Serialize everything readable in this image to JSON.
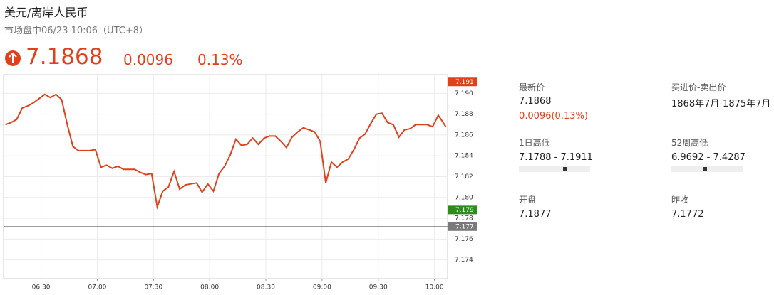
{
  "header": {
    "title": "美元/离岸人民币",
    "status": "市场盘中06/23 10:06（UTC+8）",
    "price": "7.1868",
    "change": "0.0096",
    "change_pct": "0.13%"
  },
  "chart_data": {
    "type": "line",
    "x": [
      "06:11",
      "06:14",
      "06:17",
      "06:20",
      "06:23",
      "06:26",
      "06:29",
      "06:32",
      "06:35",
      "06:38",
      "06:41",
      "06:44",
      "06:47",
      "06:50",
      "06:53",
      "06:56",
      "06:59",
      "07:02",
      "07:05",
      "07:08",
      "07:11",
      "07:14",
      "07:17",
      "07:20",
      "07:23",
      "07:26",
      "07:29",
      "07:32",
      "07:35",
      "07:38",
      "07:41",
      "07:44",
      "07:47",
      "07:50",
      "07:53",
      "07:56",
      "07:59",
      "08:02",
      "08:05",
      "08:08",
      "08:11",
      "08:14",
      "08:17",
      "08:20",
      "08:23",
      "08:26",
      "08:29",
      "08:32",
      "08:35",
      "08:38",
      "08:41",
      "08:44",
      "08:47",
      "08:50",
      "08:53",
      "08:56",
      "08:59",
      "09:02",
      "09:05",
      "09:08",
      "09:11",
      "09:14",
      "09:17",
      "09:20",
      "09:23",
      "09:26",
      "09:29",
      "09:32",
      "09:35",
      "09:38",
      "09:41",
      "09:44",
      "09:47",
      "09:50",
      "09:53",
      "09:56",
      "09:59",
      "10:02",
      "10:05",
      "10:06"
    ],
    "series": [
      {
        "color": "#e0401c",
        "values": [
          7.187,
          7.1872,
          7.1875,
          7.1886,
          7.1888,
          7.1891,
          7.1895,
          7.1899,
          7.1896,
          7.1899,
          7.1894,
          7.187,
          7.1849,
          7.1845,
          7.1845,
          7.1845,
          7.1846,
          7.1829,
          7.1831,
          7.1828,
          7.183,
          7.1827,
          7.1827,
          7.1827,
          7.1824,
          7.1822,
          7.1823,
          7.1791,
          7.1806,
          7.181,
          7.1825,
          7.1808,
          7.1812,
          7.1813,
          7.1814,
          7.1805,
          7.1813,
          7.1806,
          7.1823,
          7.183,
          7.1841,
          7.1856,
          7.185,
          7.1851,
          7.1857,
          7.1851,
          7.1857,
          7.1859,
          7.1859,
          7.1854,
          7.1848,
          7.1858,
          7.1863,
          7.1867,
          7.1865,
          7.1863,
          7.1854,
          7.1814,
          7.1834,
          7.1829,
          7.1834,
          7.1837,
          7.1846,
          7.1857,
          7.1861,
          7.1871,
          7.188,
          7.1881,
          7.1872,
          7.187,
          7.1858,
          7.1865,
          7.1866,
          7.187,
          7.187,
          7.187,
          7.1868,
          7.1879,
          7.1871,
          7.1868
        ]
      }
    ],
    "xlim": [
      "06:10",
      "10:07"
    ],
    "xticks": [
      "06:30",
      "07:00",
      "07:30",
      "08:00",
      "08:30",
      "09:00",
      "09:30",
      "10:00"
    ],
    "ylim": [
      7.1722,
      7.1918
    ],
    "yticks": [
      7.174,
      7.176,
      7.178,
      {
        "value": 7.18,
        "label": "7.180"
      },
      7.182,
      7.184,
      7.186,
      7.188,
      {
        "value": 7.19,
        "label": "7.190"
      }
    ],
    "grid": true,
    "price_labels": [
      {
        "value": 7.1911,
        "label": "7.191",
        "color": "#e0401c"
      },
      {
        "value": 7.1788,
        "label": "7.179",
        "color": "#2e8b1e"
      },
      {
        "value": 7.1772,
        "label": "7.177",
        "color": "#7a7a7a"
      }
    ]
  },
  "stats": {
    "latest": {
      "label": "最新价",
      "value": "7.1868",
      "change": "0.0096(0.13%)"
    },
    "bid_ask": {
      "label": "买进价-卖出价",
      "value": "1868年7月-1875年7月"
    },
    "day_range": {
      "label": "1日高低",
      "value": "7.1788 - 7.1911"
    },
    "week52_range": {
      "label": "52周高低",
      "value": "6.9692 - 7.4287"
    },
    "open": {
      "label": "开盘",
      "value": "7.1877"
    },
    "prev_close": {
      "label": "昨收",
      "value": "7.1772"
    }
  }
}
